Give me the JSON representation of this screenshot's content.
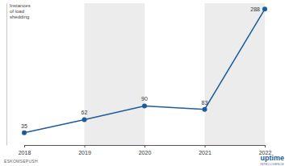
{
  "chart_data": {
    "type": "line",
    "title": "Instances of load shedding",
    "categories": [
      "2018",
      "2019",
      "2020",
      "2021",
      "2022"
    ],
    "values": [
      35,
      62,
      90,
      83,
      288
    ],
    "color": "#1c5c9c",
    "marker": "circle",
    "ylim": [
      10,
      300
    ],
    "yticks": [],
    "tick_labels": "x",
    "data_labels": true,
    "source": "ESKOMSEPUSH",
    "logo": {
      "name": "uptime",
      "tagline": "INTELLIGENCE"
    }
  }
}
